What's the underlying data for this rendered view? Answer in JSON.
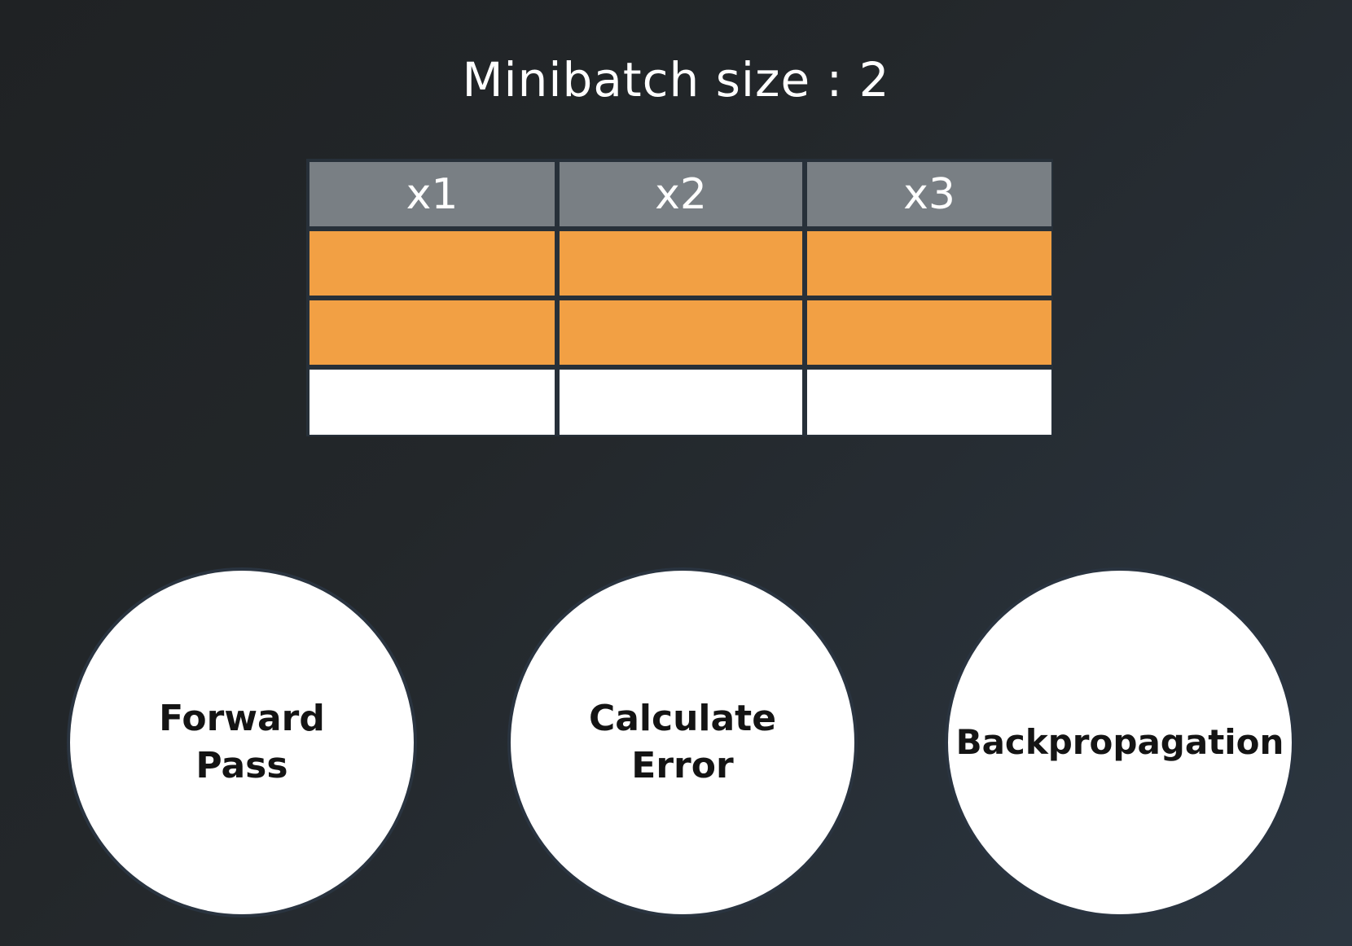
{
  "title": "Minibatch size : 2",
  "table": {
    "headers": [
      "x1",
      "x2",
      "x3"
    ],
    "row_states": [
      "batch",
      "batch",
      "rest"
    ],
    "batch_color": "#f2a044",
    "rest_color": "#ffffff",
    "header_color": "#797f84"
  },
  "steps": [
    {
      "label": "Forward\nPass"
    },
    {
      "label": "Calculate\nError"
    },
    {
      "label": "Backpropagation"
    }
  ]
}
